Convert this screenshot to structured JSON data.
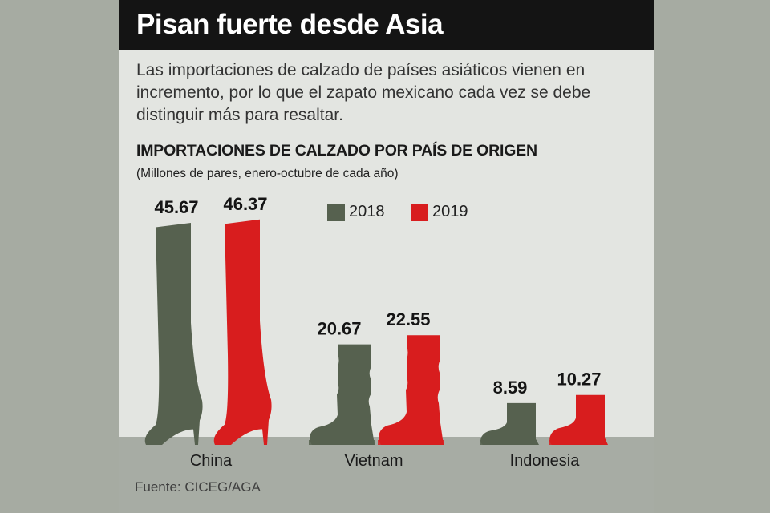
{
  "header": {
    "title": "Pisan fuerte desde Asia",
    "lead": "Las importaciones de calzado de países asiáticos vienen en incremento, por lo que el zapato mexicano cada vez se debe distinguir más para resaltar."
  },
  "chart_data": {
    "type": "bar",
    "title": "IMPORTACIONES DE CALZADO POR PAÍS DE ORIGEN",
    "subtitle": "(Millones de pares, enero-octubre de cada año)",
    "categories": [
      "China",
      "Vietnam",
      "Indonesia"
    ],
    "series": [
      {
        "name": "2018",
        "values": [
          45.67,
          20.67,
          8.59
        ],
        "color": "#56614f",
        "value_labels": [
          "45.67",
          "20.67",
          "8.59"
        ]
      },
      {
        "name": "2019",
        "values": [
          46.37,
          22.55,
          10.27
        ],
        "color": "#d81d1e",
        "value_labels": [
          "46.37",
          "22.55",
          "10.27"
        ]
      }
    ],
    "bar_shapes": [
      "high-heel-thigh-boot",
      "padded-snow-boot",
      "ankle-rain-boot"
    ],
    "legend_position": "top-center",
    "grid": false,
    "ylim": [
      0,
      48
    ]
  },
  "footer": {
    "source": "Fuente: CICEG/AGA"
  }
}
